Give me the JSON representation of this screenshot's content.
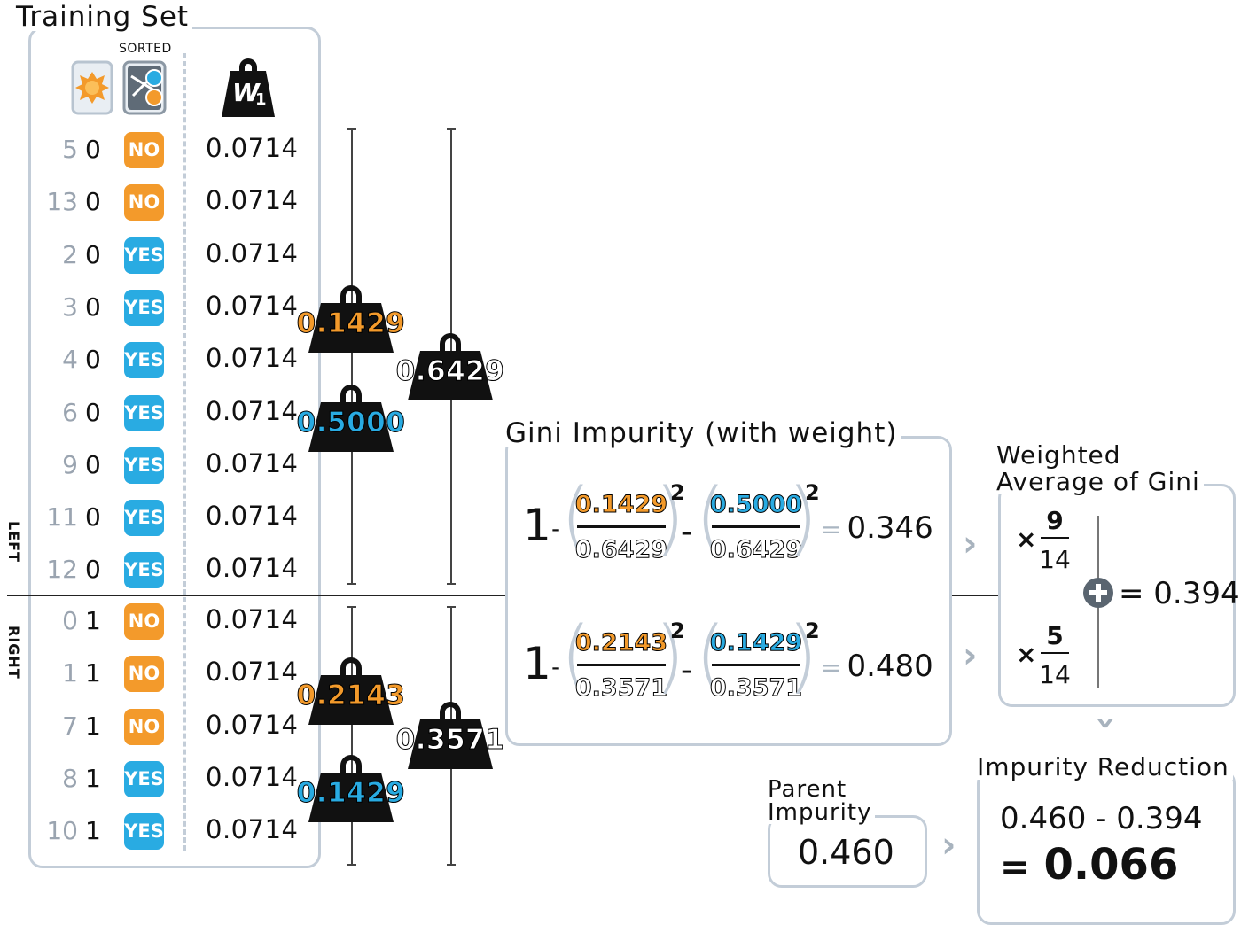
{
  "training_set": {
    "title": "Training Set",
    "sorted_label": "SORTED",
    "weight_icon_label": "W",
    "weight_icon_sub": "1",
    "left_label": "LEFT",
    "right_label": "RIGHT",
    "rows": [
      {
        "id": "5",
        "feature": "0",
        "label": "NO",
        "weight": "0.0714"
      },
      {
        "id": "13",
        "feature": "0",
        "label": "NO",
        "weight": "0.0714"
      },
      {
        "id": "2",
        "feature": "0",
        "label": "YES",
        "weight": "0.0714"
      },
      {
        "id": "3",
        "feature": "0",
        "label": "YES",
        "weight": "0.0714"
      },
      {
        "id": "4",
        "feature": "0",
        "label": "YES",
        "weight": "0.0714"
      },
      {
        "id": "6",
        "feature": "0",
        "label": "YES",
        "weight": "0.0714"
      },
      {
        "id": "9",
        "feature": "0",
        "label": "YES",
        "weight": "0.0714"
      },
      {
        "id": "11",
        "feature": "0",
        "label": "YES",
        "weight": "0.0714"
      },
      {
        "id": "12",
        "feature": "0",
        "label": "YES",
        "weight": "0.0714"
      },
      {
        "id": "0",
        "feature": "1",
        "label": "NO",
        "weight": "0.0714"
      },
      {
        "id": "1",
        "feature": "1",
        "label": "NO",
        "weight": "0.0714"
      },
      {
        "id": "7",
        "feature": "1",
        "label": "NO",
        "weight": "0.0714"
      },
      {
        "id": "8",
        "feature": "1",
        "label": "YES",
        "weight": "0.0714"
      },
      {
        "id": "10",
        "feature": "1",
        "label": "YES",
        "weight": "0.0714"
      }
    ]
  },
  "weights": {
    "left_no": "0.1429",
    "left_yes": "0.5000",
    "left_total": "0.6429",
    "right_no": "0.2143",
    "right_yes": "0.1429",
    "right_total": "0.3571"
  },
  "gini": {
    "title": "Gini Impurity (with weight)",
    "one": "1",
    "minus": "-",
    "exp": "2",
    "eq": "=",
    "left": {
      "num1": "0.1429",
      "den1": "0.6429",
      "num2": "0.5000",
      "den2": "0.6429",
      "result": "0.346"
    },
    "right": {
      "num1": "0.2143",
      "den1": "0.3571",
      "num2": "0.1429",
      "den2": "0.3571",
      "result": "0.480"
    }
  },
  "weighted_avg": {
    "title_line1": "Weighted",
    "title_line2": "Average of Gini",
    "times": "×",
    "left_num": "9",
    "left_den": "14",
    "right_num": "5",
    "right_den": "14",
    "result": "= 0.394"
  },
  "parent": {
    "title_line1": "Parent",
    "title_line2": "Impurity",
    "value": "0.460"
  },
  "reduction": {
    "title": "Impurity Reduction",
    "expression": "0.460 - 0.394",
    "eq": "=",
    "result": "0.066"
  },
  "colors": {
    "no": "#f39a2b",
    "yes": "#29abe2",
    "panel_border": "#c3cdd8"
  }
}
